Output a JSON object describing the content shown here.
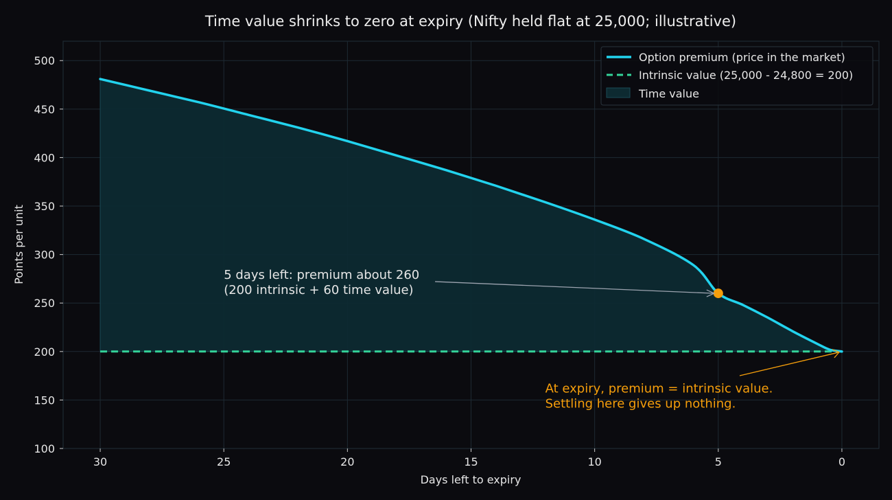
{
  "colors": {
    "background": "#0b0b0f",
    "grid": "#1e2a33",
    "premium": "#22d3ee",
    "intrinsic": "#34d399",
    "time_value_fill": "#0d2a31",
    "highlight": "#f59e0b",
    "annotation_arrow": "#9ca3af",
    "text": "#e6e6e6"
  },
  "chart_data": {
    "type": "line",
    "title": "Time value shrinks to zero at expiry (Nifty held flat at 25,000; illustrative)",
    "xlabel": "Days left to expiry",
    "ylabel": "Points per unit",
    "xlim": [
      31.5,
      -1.5
    ],
    "ylim": [
      100,
      520
    ],
    "x_ticks": [
      30,
      25,
      20,
      15,
      10,
      5,
      0
    ],
    "y_ticks": [
      100,
      150,
      200,
      250,
      300,
      350,
      400,
      450,
      500
    ],
    "grid": true,
    "legend_position": "top-right",
    "series": [
      {
        "name": "Option premium (price in the market)",
        "style": "solid",
        "x": [
          30,
          28,
          26,
          24,
          22,
          20,
          18,
          16,
          14,
          12,
          10,
          8,
          6,
          5,
          4,
          3,
          2,
          1,
          0.5,
          0
        ],
        "values": [
          481,
          469,
          457,
          444,
          431,
          417,
          402,
          387,
          371,
          354,
          336,
          316,
          289,
          260,
          248,
          235,
          221,
          208,
          202,
          200
        ]
      },
      {
        "name": "Intrinsic value (25,000 - 24,800 = 200)",
        "style": "dashed",
        "x": [
          30,
          0
        ],
        "values": [
          200,
          200
        ]
      }
    ],
    "area": {
      "name": "Time value",
      "between": [
        "Option premium (price in the market)",
        "Intrinsic value (25,000 - 24,800 = 200)"
      ]
    },
    "highlight_point": {
      "x": 5,
      "y": 260
    },
    "annotations": [
      {
        "lines": [
          "5 days left: premium about 260",
          "(200 intrinsic + 60 time value)"
        ],
        "text_at": [
          25,
          275
        ],
        "arrow_to": [
          5,
          260
        ]
      },
      {
        "lines": [
          "At expiry, premium = intrinsic value.",
          "Settling here gives up nothing."
        ],
        "text_at": [
          12,
          160
        ],
        "arrow_to": [
          0,
          200
        ]
      }
    ]
  }
}
